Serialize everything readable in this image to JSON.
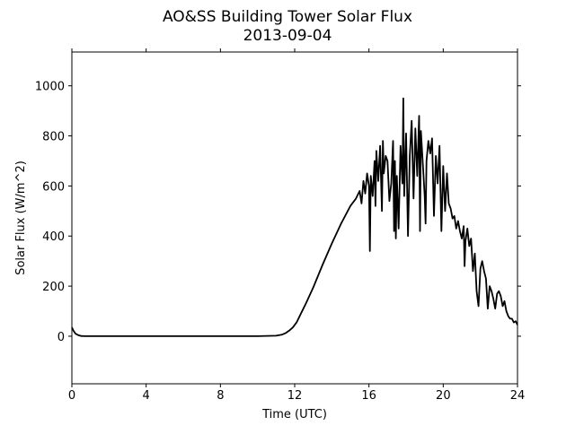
{
  "chart_data": {
    "type": "line",
    "title": "AO&SS Building Tower Solar Flux",
    "subtitle": "2013-09-04",
    "xlabel": "Time (UTC)",
    "ylabel": "Solar Flux (W/m^2)",
    "xlim": [
      0,
      24
    ],
    "ylim": [
      -190,
      1135
    ],
    "xticks": [
      0,
      4,
      8,
      12,
      16,
      20,
      24
    ],
    "yticks": [
      0,
      200,
      400,
      600,
      800,
      1000
    ],
    "grid": false,
    "legend": "none",
    "line_color": "#000000",
    "series": [
      {
        "x": [
          0.0,
          0.1,
          0.2,
          0.35,
          0.5,
          0.7,
          1.0,
          1.5,
          2,
          4,
          6,
          8,
          10,
          11.0,
          11.3,
          11.5,
          11.7,
          11.9,
          12.1,
          12.3,
          12.6,
          13.0,
          13.5,
          14.0,
          14.5,
          15.0,
          15.3,
          15.5,
          15.6,
          15.7,
          15.8,
          15.9,
          16.0,
          16.05,
          16.1,
          16.2,
          16.3,
          16.35,
          16.4,
          16.5,
          16.6,
          16.7,
          16.75,
          16.8,
          16.9,
          17.0,
          17.1,
          17.2,
          17.3,
          17.35,
          17.4,
          17.45,
          17.5,
          17.6,
          17.7,
          17.8,
          17.85,
          17.9,
          18.0,
          18.1,
          18.2,
          18.3,
          18.4,
          18.5,
          18.6,
          18.7,
          18.75,
          18.8,
          18.9,
          19.0,
          19.05,
          19.1,
          19.2,
          19.3,
          19.4,
          19.5,
          19.6,
          19.7,
          19.8,
          19.9,
          20.0,
          20.1,
          20.2,
          20.3,
          20.4,
          20.5,
          20.6,
          20.7,
          20.8,
          20.9,
          21.0,
          21.1,
          21.15,
          21.2,
          21.3,
          21.4,
          21.5,
          21.6,
          21.7,
          21.8,
          21.9,
          22.0,
          22.1,
          22.2,
          22.3,
          22.4,
          22.5,
          22.6,
          22.7,
          22.8,
          22.9,
          23.0,
          23.1,
          23.2,
          23.3,
          23.4,
          23.5,
          23.6,
          23.7,
          23.8,
          23.9,
          24.0
        ],
        "y": [
          35,
          20,
          10,
          4,
          1,
          0,
          0,
          0,
          0,
          0,
          0,
          0,
          0,
          2,
          6,
          12,
          22,
          35,
          55,
          85,
          130,
          195,
          285,
          370,
          450,
          520,
          550,
          580,
          530,
          620,
          570,
          650,
          600,
          340,
          640,
          560,
          700,
          520,
          740,
          620,
          760,
          500,
          780,
          650,
          720,
          700,
          540,
          610,
          780,
          420,
          700,
          390,
          640,
          430,
          760,
          610,
          950,
          560,
          810,
          400,
          720,
          860,
          550,
          830,
          640,
          880,
          420,
          820,
          690,
          560,
          450,
          700,
          780,
          730,
          790,
          480,
          720,
          610,
          760,
          420,
          680,
          500,
          650,
          530,
          510,
          470,
          480,
          430,
          460,
          420,
          390,
          440,
          280,
          380,
          430,
          360,
          390,
          260,
          330,
          180,
          120,
          270,
          300,
          260,
          230,
          110,
          200,
          180,
          150,
          110,
          170,
          180,
          160,
          120,
          140,
          100,
          80,
          70,
          70,
          55,
          60,
          45
        ]
      }
    ]
  }
}
